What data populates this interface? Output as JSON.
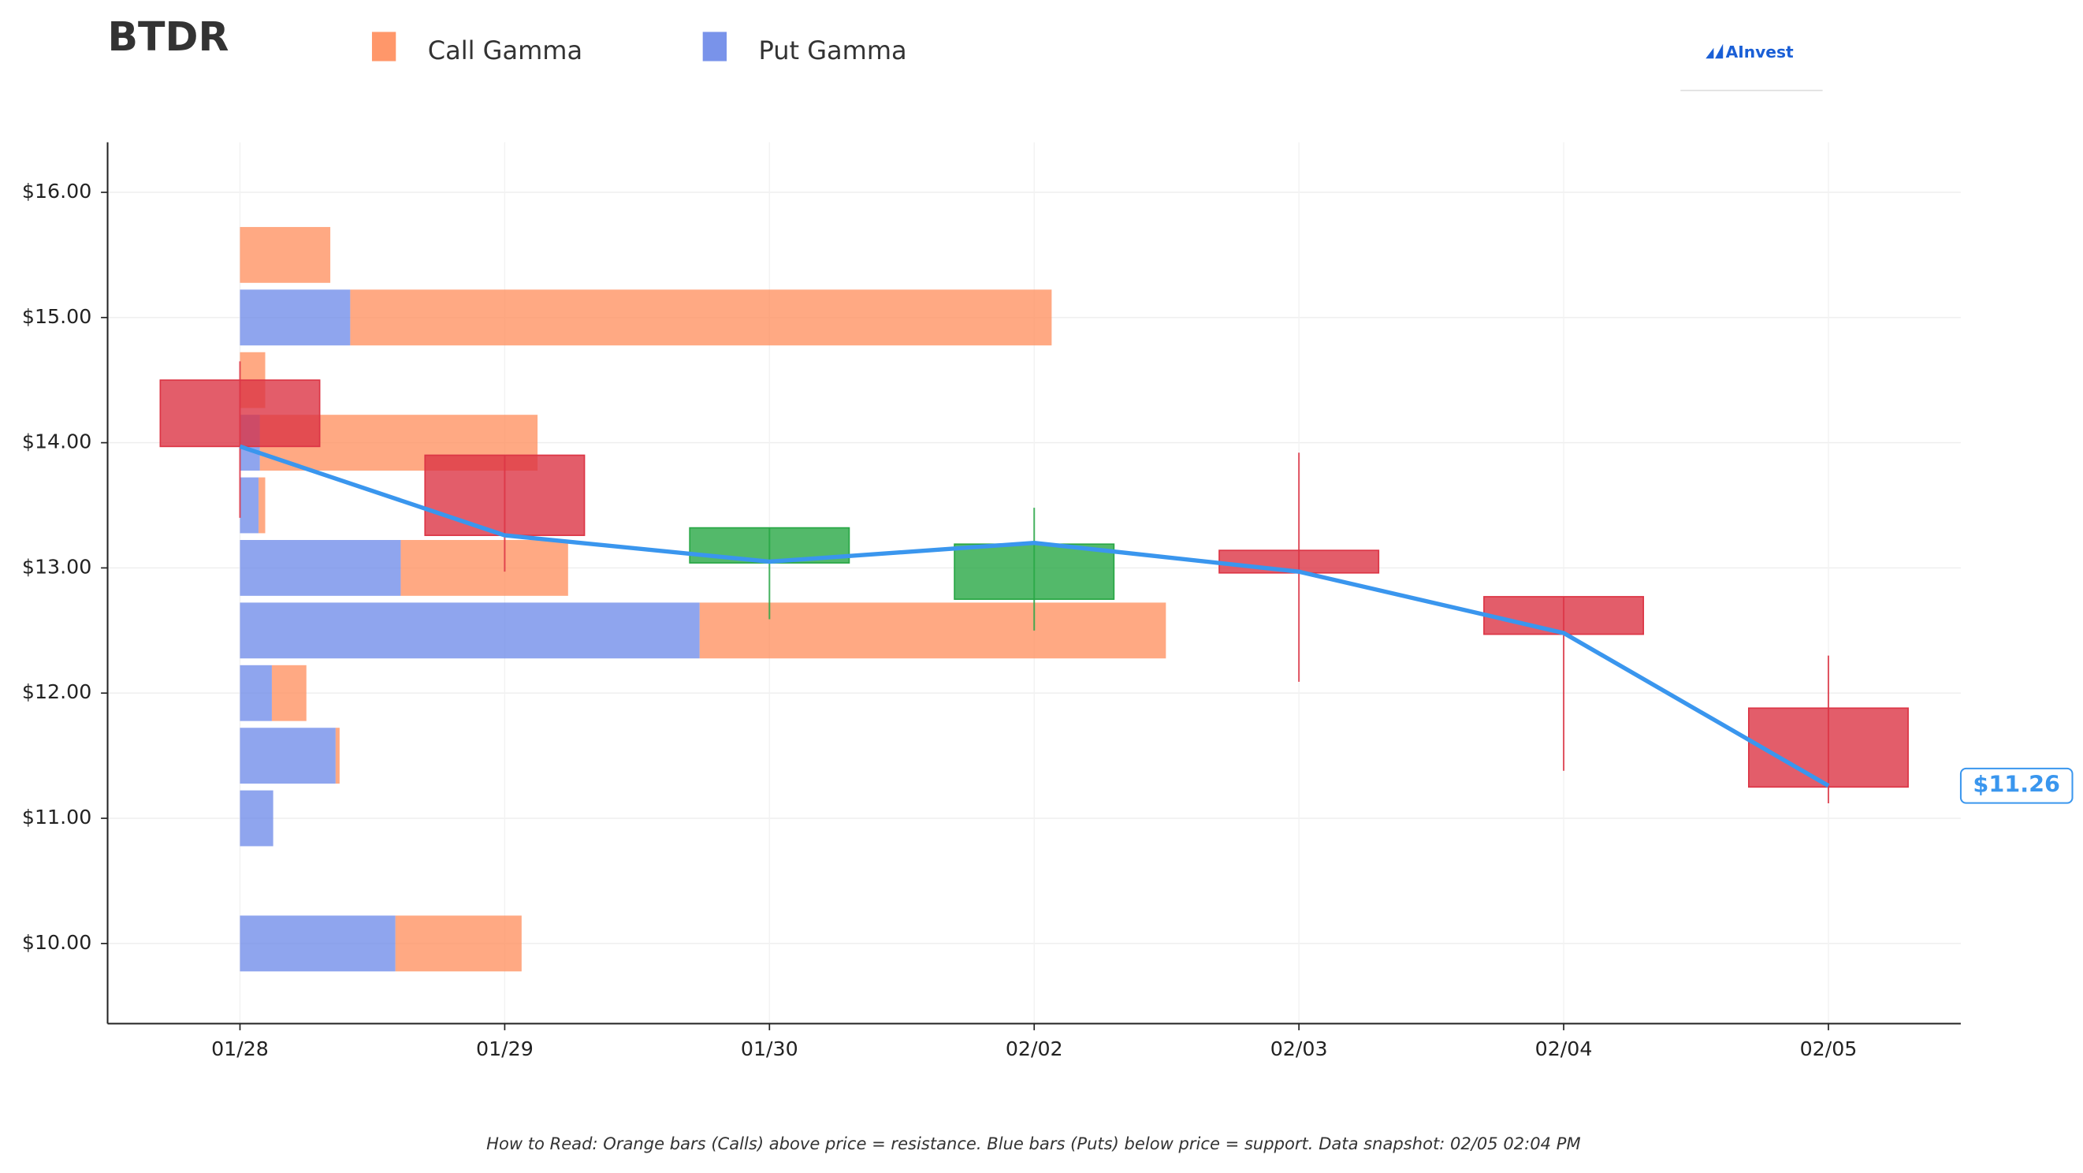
{
  "chart_data": {
    "type": "candlestick",
    "title": "BTDR",
    "footnote": "How to Read: Orange bars (Calls) above price = resistance. Blue bars (Puts) below price = support. Data snapshot: 02/05 02:04 PM",
    "logo": "AInvest",
    "categories": [
      "01/28",
      "01/29",
      "01/30",
      "02/02",
      "02/03",
      "02/04",
      "02/05"
    ],
    "open": [
      14.5,
      13.9,
      13.04,
      12.75,
      13.14,
      12.77,
      11.88
    ],
    "high": [
      14.65,
      13.9,
      13.32,
      13.48,
      13.92,
      12.77,
      12.3
    ],
    "low": [
      13.4,
      12.97,
      12.59,
      12.5,
      12.09,
      11.38,
      11.12
    ],
    "close": [
      13.97,
      13.26,
      13.32,
      13.19,
      12.96,
      12.47,
      11.25
    ],
    "up_color": "#28a745",
    "down_color": "#dc3545",
    "price": {
      "values": [
        13.97,
        13.26,
        13.05,
        13.2,
        12.97,
        12.48,
        11.26
      ],
      "color": "#3a96ee",
      "last_label": "$11.26"
    },
    "gamma": {
      "levels": [
        15.5,
        15.0,
        14.5,
        14.0,
        13.5,
        13.0,
        12.5,
        12.0,
        11.5,
        11.0,
        10.0
      ],
      "xlim": [
        0,
        1000
      ],
      "series": [
        {
          "name": "Call Gamma",
          "color": "#ff8c5a",
          "values": [
            68,
            528,
            19,
            209,
            5,
            126,
            351,
            26,
            3,
            0,
            95
          ]
        },
        {
          "name": "Put Gamma",
          "color": "#6a87e8",
          "values": [
            0,
            83,
            0,
            15,
            14,
            121,
            346,
            24,
            72,
            25,
            117
          ]
        }
      ]
    },
    "ylim": [
      9.36,
      16.4
    ],
    "yticks": [
      {
        "value": 10,
        "label": "$10.00"
      },
      {
        "value": 11,
        "label": "$11.00"
      },
      {
        "value": 12,
        "label": "$12.00"
      },
      {
        "value": 13,
        "label": "$13.00"
      },
      {
        "value": 14,
        "label": "$14.00"
      },
      {
        "value": 15,
        "label": "$15.00"
      },
      {
        "value": 16,
        "label": "$16.00"
      }
    ],
    "grid": true
  }
}
